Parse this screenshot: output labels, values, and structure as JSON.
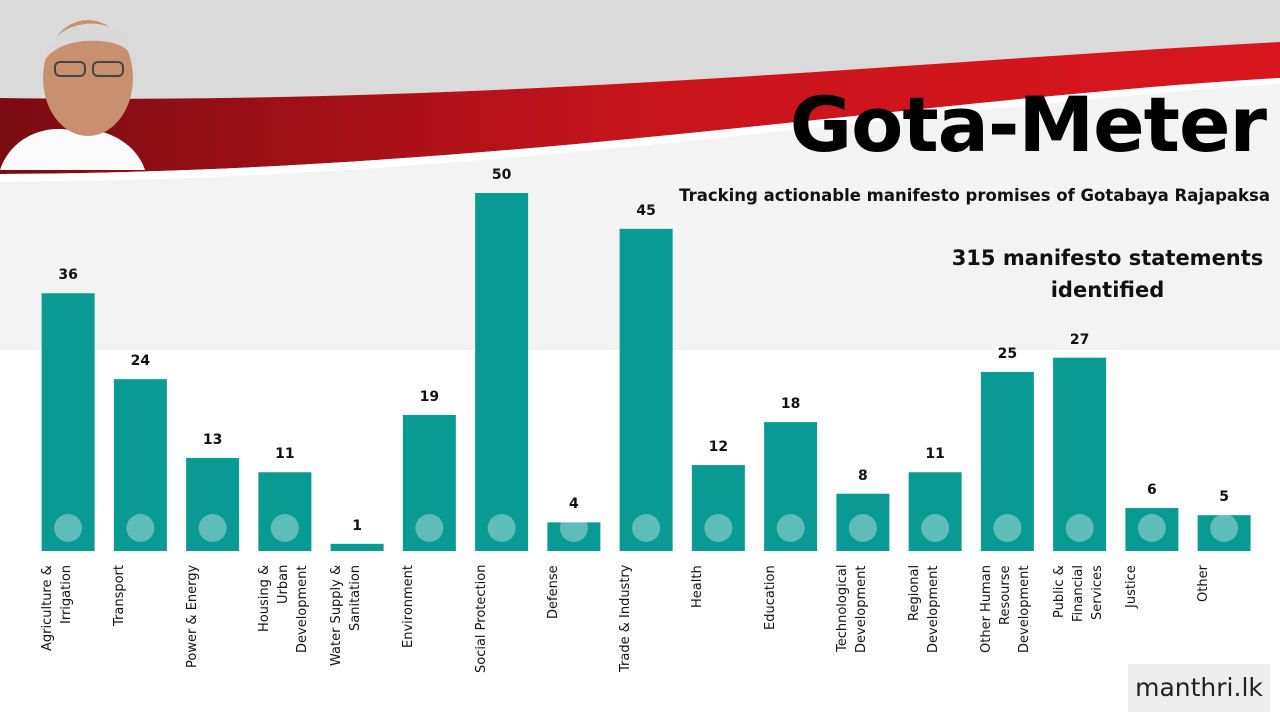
{
  "chart_data": {
    "type": "bar",
    "title": "Gota-Meter",
    "subtitle": "Tracking actionable manifesto promises of Gotabaya Rajapaksa",
    "annotation": "315 manifesto statements identified",
    "brand": "manthri.lk",
    "categories": [
      "Agriculture & Irrigation",
      "Transport",
      "Power & Energy",
      "Housing & Urban Development",
      "Water Supply & Sanitation",
      "Environment",
      "Social Protection",
      "Defense",
      "Trade & Industry",
      "Health",
      "Education",
      "Technological Development",
      "Regional Development",
      "Other Human Resourse Development",
      "Public & Financial Services",
      "Justice",
      "Other"
    ],
    "values": [
      36,
      24,
      13,
      11,
      1,
      19,
      50,
      4,
      45,
      12,
      18,
      8,
      11,
      25,
      27,
      6,
      5
    ],
    "color": "#0a9a94"
  }
}
